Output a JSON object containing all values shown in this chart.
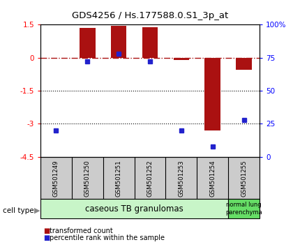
{
  "title": "GDS4256 / Hs.177588.0.S1_3p_at",
  "samples": [
    "GSM501249",
    "GSM501250",
    "GSM501251",
    "GSM501252",
    "GSM501253",
    "GSM501254",
    "GSM501255"
  ],
  "transformed_count": [
    0.0,
    1.35,
    1.45,
    1.4,
    -0.1,
    -3.3,
    -0.55
  ],
  "percentile_rank": [
    20,
    72,
    78,
    72,
    20,
    8,
    28
  ],
  "ylim_left": [
    -4.5,
    1.5
  ],
  "ylim_right": [
    0,
    100
  ],
  "bar_color": "#aa1111",
  "dot_color": "#2222cc",
  "hline_color": "#aa1111",
  "cell_types": [
    {
      "label": "caseous TB granulomas",
      "span": [
        0,
        5
      ],
      "color": "#c8f5c8"
    },
    {
      "label": "normal lung\nparenchyma",
      "span": [
        6,
        6
      ],
      "color": "#66dd66"
    }
  ],
  "legend_labels": [
    "transformed count",
    "percentile rank within the sample"
  ],
  "cell_type_label": "cell type",
  "sample_bg_color": "#cccccc",
  "bar_width": 0.5
}
